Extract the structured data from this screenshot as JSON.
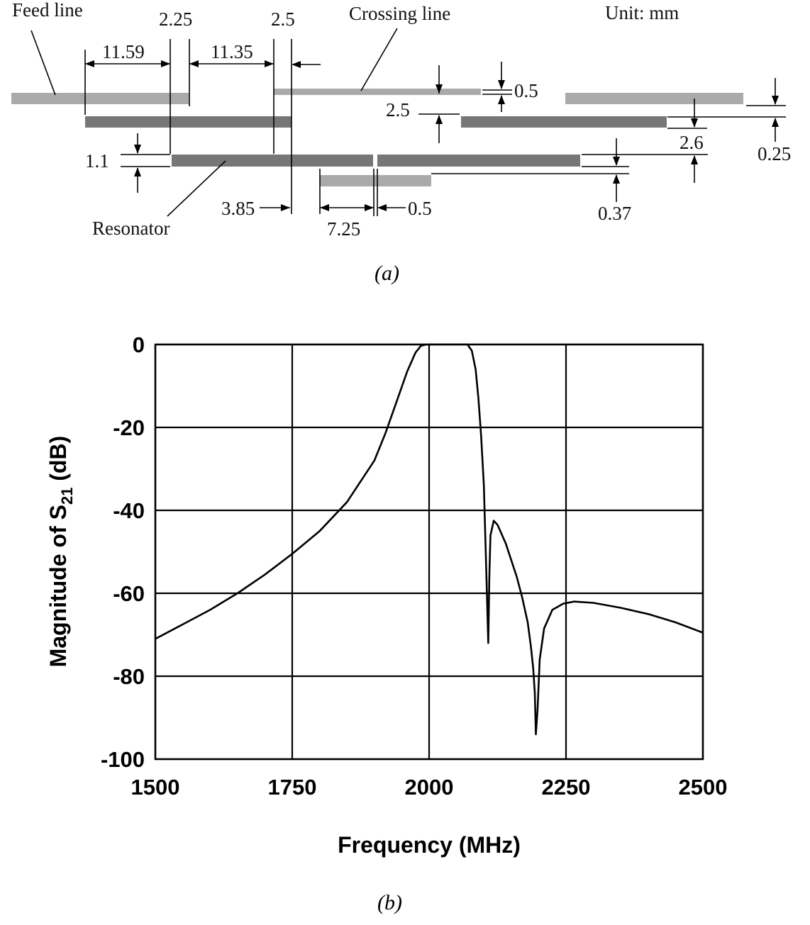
{
  "diagram": {
    "unit": "Unit: mm",
    "labels": {
      "feed_line": "Feed  line",
      "crossing_line": "Crossing line",
      "resonator": "Resonator"
    },
    "dimensions": {
      "d_11_59": "11.59",
      "d_2_25": "2.25",
      "d_11_35": "11.35",
      "d_2_5_top": "2.5",
      "d_0_5_top": "0.5",
      "d_2_5_mid": "2.5",
      "d_2_6": "2.6",
      "d_0_25": "0.25",
      "d_1_1": "1.1",
      "d_3_85": "3.85",
      "d_7_25": "7.25",
      "d_0_5_bot": "0.5",
      "d_0_37": "0.37"
    },
    "caption": "(a)"
  },
  "chart_caption": "(b)",
  "chart_data": {
    "type": "line",
    "xlabel": "Frequency (MHz)",
    "ylabel_main": "Magnitude of S",
    "ylabel_sub": "21",
    "ylabel_tail": " (dB)",
    "xlim": [
      1500,
      2500
    ],
    "ylim": [
      -100,
      0
    ],
    "xticks": [
      1500,
      1750,
      2000,
      2250,
      2500
    ],
    "yticks": [
      0,
      -20,
      -40,
      -60,
      -80,
      -100
    ],
    "xtick_labels": [
      "1500",
      "1750",
      "2000",
      "2250",
      "2500"
    ],
    "ytick_labels": [
      "0",
      "-20",
      "-40",
      "-60",
      "-80",
      "-100"
    ],
    "grid": true,
    "series": [
      {
        "x": [
          1500,
          1550,
          1600,
          1650,
          1700,
          1750,
          1800,
          1850,
          1900,
          1920,
          1940,
          1960,
          1975,
          1985,
          1995,
          2000,
          2020,
          2050,
          2070,
          2078,
          2085,
          2090,
          2095,
          2100,
          2103,
          2106,
          2108,
          2110,
          2112,
          2118,
          2125,
          2140,
          2160,
          2170,
          2180,
          2186,
          2190,
          2193,
          2195,
          2198,
          2202,
          2210,
          2225,
          2245,
          2265,
          2300,
          2350,
          2400,
          2450,
          2500
        ],
        "y": [
          -71,
          -67.5,
          -64,
          -60,
          -55.5,
          -50.5,
          -45,
          -38,
          -28,
          -21.5,
          -14,
          -6.5,
          -2,
          -0.3,
          0,
          0,
          0,
          0,
          0,
          -1.5,
          -6,
          -13,
          -22,
          -34,
          -48,
          -62,
          -72,
          -56,
          -46,
          -42.5,
          -43.5,
          -48,
          -56,
          -61,
          -67,
          -73,
          -78,
          -84,
          -94,
          -88,
          -76,
          -68.5,
          -64,
          -62.5,
          -62,
          -62.3,
          -63.5,
          -65,
          -67,
          -69.5
        ]
      }
    ]
  }
}
